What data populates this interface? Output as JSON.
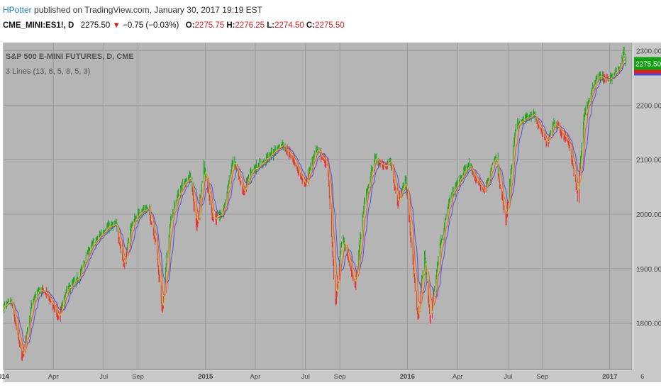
{
  "header": {
    "author": "HPotter",
    "published_text": " published on TradingView.com, January 30, 2017 19:19 EST",
    "symbol": "CME_MINI:ES1!, D",
    "last_price": "2275.50",
    "change_arrow": "▼",
    "change": "−0.75 (−0.03%)",
    "open_label": "O:",
    "open": "2275.75",
    "high_label": "H:",
    "high": "2276.25",
    "low_label": "L:",
    "low": "2274.50",
    "close_label": "C:",
    "close": "2275.50"
  },
  "colors": {
    "background": "#b5b5b5",
    "grid": "#9a9a9a",
    "up_bar": "#22a022",
    "down_bar": "#e83030",
    "ma_fast": "#c8c030",
    "ma_mid": "#e05050",
    "ma_slow": "#5050d0",
    "price_badge": "#10a010",
    "axis_text": "#444444"
  },
  "chart_data": {
    "type": "ohlc",
    "title": "S&P 500 E-MINI FUTURES, D, CME",
    "indicator": "3 Lines (13, 8, 5, 8, 5, 3)",
    "ylim": [
      1715,
      2315
    ],
    "y_ticks": [
      1800,
      1900,
      2000,
      2100,
      2200,
      2300
    ],
    "y_tick_labels": [
      "1800.00",
      "1900.00",
      "2000.00",
      "2100.00",
      "2200.00",
      "2300.00"
    ],
    "x_range": [
      "2014-01-01",
      "2017-02-10"
    ],
    "x_ticks": [
      {
        "date": "2014-01-01",
        "label": "014",
        "bold": true
      },
      {
        "date": "2014-04-01",
        "label": "Apr",
        "bold": false
      },
      {
        "date": "2014-07-01",
        "label": "Jul",
        "bold": false
      },
      {
        "date": "2014-09-01",
        "label": "Sep",
        "bold": false
      },
      {
        "date": "2015-01-01",
        "label": "2015",
        "bold": true
      },
      {
        "date": "2015-04-01",
        "label": "Apr",
        "bold": false
      },
      {
        "date": "2015-07-01",
        "label": "Jul",
        "bold": false
      },
      {
        "date": "2015-09-01",
        "label": "Sep",
        "bold": false
      },
      {
        "date": "2016-01-01",
        "label": "2016",
        "bold": true
      },
      {
        "date": "2016-04-01",
        "label": "Apr",
        "bold": false
      },
      {
        "date": "2016-07-01",
        "label": "Jul",
        "bold": false
      },
      {
        "date": "2016-09-01",
        "label": "Sep",
        "bold": false
      },
      {
        "date": "2017-01-01",
        "label": "2017",
        "bold": true
      },
      {
        "date": "2017-03-01",
        "label": "6",
        "bold": false
      }
    ],
    "price_path": [
      [
        "2014-01-01",
        1830
      ],
      [
        "2014-01-15",
        1838
      ],
      [
        "2014-02-04",
        1735
      ],
      [
        "2014-02-20",
        1830
      ],
      [
        "2014-03-05",
        1860
      ],
      [
        "2014-03-20",
        1855
      ],
      [
        "2014-04-11",
        1810
      ],
      [
        "2014-04-25",
        1860
      ],
      [
        "2014-05-15",
        1880
      ],
      [
        "2014-06-05",
        1935
      ],
      [
        "2014-06-20",
        1955
      ],
      [
        "2014-07-05",
        1975
      ],
      [
        "2014-07-24",
        1980
      ],
      [
        "2014-08-07",
        1905
      ],
      [
        "2014-08-20",
        1980
      ],
      [
        "2014-09-05",
        2005
      ],
      [
        "2014-09-20",
        2010
      ],
      [
        "2014-10-03",
        1950
      ],
      [
        "2014-10-15",
        1820
      ],
      [
        "2014-10-28",
        1980
      ],
      [
        "2014-11-15",
        2045
      ],
      [
        "2014-12-05",
        2070
      ],
      [
        "2014-12-16",
        1975
      ],
      [
        "2014-12-29",
        2090
      ],
      [
        "2015-01-15",
        1990
      ],
      [
        "2015-02-01",
        2000
      ],
      [
        "2015-02-20",
        2100
      ],
      [
        "2015-03-10",
        2040
      ],
      [
        "2015-03-25",
        2080
      ],
      [
        "2015-04-15",
        2095
      ],
      [
        "2015-05-20",
        2130
      ],
      [
        "2015-06-10",
        2100
      ],
      [
        "2015-06-29",
        2050
      ],
      [
        "2015-07-20",
        2120
      ],
      [
        "2015-08-10",
        2090
      ],
      [
        "2015-08-24",
        1835
      ],
      [
        "2015-09-05",
        1960
      ],
      [
        "2015-09-29",
        1870
      ],
      [
        "2015-10-15",
        2020
      ],
      [
        "2015-11-03",
        2105
      ],
      [
        "2015-11-20",
        2085
      ],
      [
        "2015-12-01",
        2100
      ],
      [
        "2015-12-14",
        2020
      ],
      [
        "2015-12-29",
        2065
      ],
      [
        "2016-01-20",
        1805
      ],
      [
        "2016-02-01",
        1930
      ],
      [
        "2016-02-11",
        1805
      ],
      [
        "2016-03-01",
        1950
      ],
      [
        "2016-03-20",
        2035
      ],
      [
        "2016-04-20",
        2090
      ],
      [
        "2016-05-19",
        2040
      ],
      [
        "2016-06-08",
        2110
      ],
      [
        "2016-06-27",
        1985
      ],
      [
        "2016-07-15",
        2160
      ],
      [
        "2016-08-15",
        2185
      ],
      [
        "2016-09-09",
        2130
      ],
      [
        "2016-09-22",
        2170
      ],
      [
        "2016-10-20",
        2130
      ],
      [
        "2016-11-04",
        2030
      ],
      [
        "2016-11-15",
        2180
      ],
      [
        "2016-12-09",
        2255
      ],
      [
        "2016-12-30",
        2245
      ],
      [
        "2017-01-20",
        2270
      ],
      [
        "2017-01-26",
        2300
      ],
      [
        "2017-01-30",
        2275
      ]
    ],
    "last_price_label": "2275.50"
  }
}
